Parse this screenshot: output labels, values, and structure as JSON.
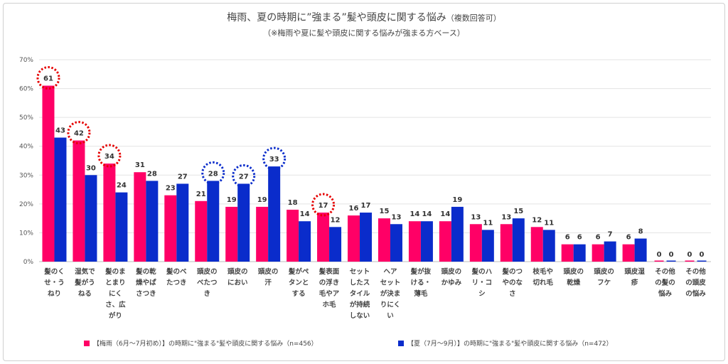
{
  "chart_data": {
    "type": "bar",
    "title": "梅雨、夏の時期に”強まる”髪や頭皮に関する悩み",
    "title_note": "（複数回答可）",
    "subtitle": "（※梅雨や夏に髪や頭皮に関する悩みが強まる方ベース）",
    "ylim": [
      0,
      70
    ],
    "yticks": [
      "0%",
      "10%",
      "20%",
      "30%",
      "40%",
      "50%",
      "60%",
      "70%"
    ],
    "grid": true,
    "legend_position": "bottom",
    "categories": [
      [
        "髪のく",
        "せ・う",
        "ねり"
      ],
      [
        "湿気で",
        "髪がう",
        "ねる"
      ],
      [
        "髪のま",
        "とまり",
        "にく",
        "さ、広",
        "がり"
      ],
      [
        "髪の乾",
        "燥やぱ",
        "さつき"
      ],
      [
        "髪のベ",
        "たつき"
      ],
      [
        "頭皮の",
        "べたつ",
        "き"
      ],
      [
        "頭皮の",
        "におい"
      ],
      [
        "頭皮の",
        "汗"
      ],
      [
        "髪がペ",
        "タンと",
        "する"
      ],
      [
        "髪表面",
        "の浮き",
        "毛やア",
        "ホ毛"
      ],
      [
        "セット",
        "したス",
        "タイル",
        "が持続",
        "しない"
      ],
      [
        "ヘア",
        "セット",
        "が決ま",
        "りにく",
        "い"
      ],
      [
        "髪が抜",
        "ける・",
        "薄毛"
      ],
      [
        "頭皮の",
        "かゆみ"
      ],
      [
        "髪のハ",
        "リ・コ",
        "シ"
      ],
      [
        "髪のつ",
        "やのな",
        "さ"
      ],
      [
        "枝毛や",
        "切れ毛"
      ],
      [
        "頭皮の",
        "乾燥"
      ],
      [
        "頭皮の",
        "フケ"
      ],
      [
        "頭皮湿",
        "疹"
      ],
      [
        "その他",
        "の髪の",
        "悩み"
      ],
      [
        "その他",
        "の頭皮",
        "の悩み"
      ]
    ],
    "series": [
      {
        "name": "【梅雨（6月～7月初め）】の時期に\"強まる\"髪や頭皮に関する悩み（n=456）",
        "color": "#ff0066",
        "values": [
          61,
          42,
          34,
          31,
          23,
          21,
          19,
          19,
          18,
          17,
          16,
          15,
          14,
          14,
          13,
          13,
          12,
          6,
          6,
          6,
          0,
          0
        ]
      },
      {
        "name": "【夏（7月～9月）】の時期に\"強まる\"髪や頭皮に関する悩み（n=472）",
        "color": "#0a2ccb",
        "values": [
          43,
          30,
          24,
          28,
          27,
          28,
          27,
          33,
          14,
          12,
          17,
          13,
          14,
          19,
          11,
          15,
          11,
          6,
          7,
          8,
          0,
          0
        ]
      }
    ],
    "highlighted": [
      {
        "series": 0,
        "index": 0
      },
      {
        "series": 0,
        "index": 1
      },
      {
        "series": 0,
        "index": 2
      },
      {
        "series": 0,
        "index": 9
      },
      {
        "series": 1,
        "index": 5
      },
      {
        "series": 1,
        "index": 6
      },
      {
        "series": 1,
        "index": 7
      }
    ]
  }
}
